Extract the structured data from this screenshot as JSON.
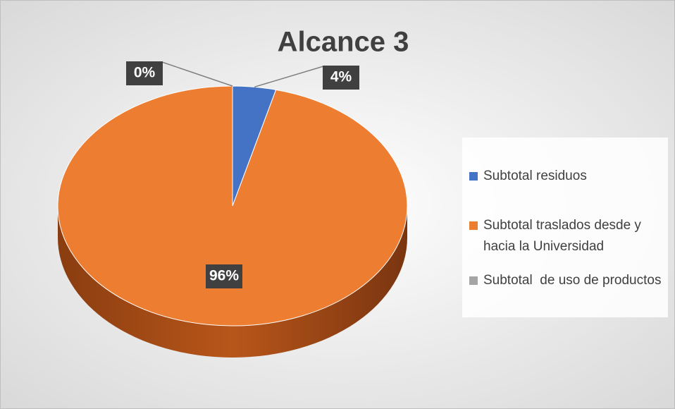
{
  "chart_data": {
    "type": "pie",
    "title": "Alcance 3",
    "categories": [
      "Subtotal residuos",
      "Subtotal traslados desde y hacia la Universidad",
      "Subtotal  de uso de productos"
    ],
    "values": [
      4,
      96,
      0
    ],
    "value_labels": [
      "4%",
      "96%",
      "0%"
    ],
    "colors": [
      "#4472c4",
      "#ed7d31",
      "#a5a5a5"
    ],
    "legend": "right"
  }
}
